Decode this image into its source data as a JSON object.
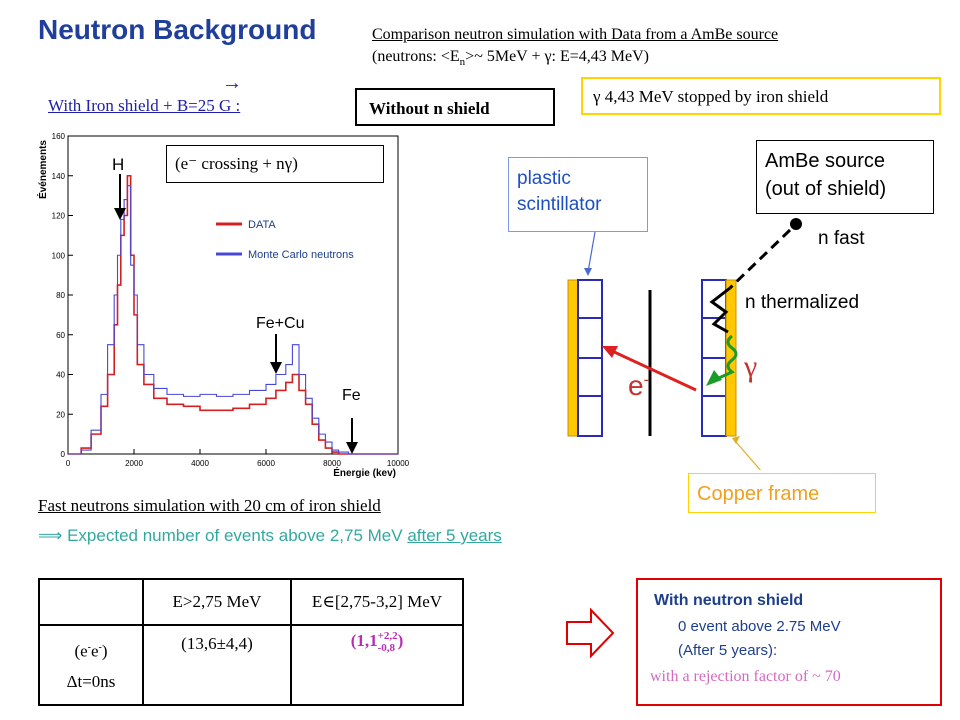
{
  "slide": {
    "title": "Neutron Background",
    "comparison_line1": "Comparison neutron simulation with Data from a AmBe source",
    "comparison_line2_a": "(neutrons: <E",
    "comparison_line2_sub": "n",
    "comparison_line2_b": ">~ 5MeV + γ: E=4,43 MeV)",
    "iron_shield_label": "With Iron shield + B=25 G :",
    "vector_arrow": "→",
    "without_n_shield": "Without n shield",
    "gamma_stopped": "γ  4,43 MeV stopped by iron shield"
  },
  "chart_data": {
    "type": "line",
    "xlabel": "Énergie (kev)",
    "ylabel": "Événements",
    "xlim": [
      0,
      10000
    ],
    "ylim": [
      0,
      160
    ],
    "xticks": [
      0,
      2000,
      4000,
      6000,
      8000,
      10000
    ],
    "yticks": [
      0,
      20,
      40,
      60,
      80,
      100,
      120,
      140,
      160
    ],
    "legend_position": "top-right",
    "series": [
      {
        "name": "DATA",
        "color": "#d42020",
        "x": [
          0,
          400,
          700,
          1000,
          1200,
          1400,
          1500,
          1600,
          1700,
          1800,
          1900,
          2000,
          2100,
          2300,
          2600,
          3000,
          3500,
          4000,
          4500,
          5000,
          5500,
          6000,
          6300,
          6600,
          6800,
          7000,
          7200,
          7400,
          7600,
          7800,
          8000,
          8200,
          8500,
          9000,
          10000
        ],
        "values": [
          0,
          3,
          10,
          24,
          40,
          65,
          85,
          110,
          120,
          140,
          100,
          70,
          45,
          35,
          28,
          25,
          24,
          22,
          22,
          23,
          25,
          28,
          32,
          36,
          40,
          32,
          25,
          15,
          7,
          3,
          1,
          0,
          0,
          0,
          0
        ]
      },
      {
        "name": "Monte Carlo neutrons",
        "color": "#4848d8",
        "x": [
          0,
          400,
          700,
          1000,
          1200,
          1400,
          1500,
          1600,
          1700,
          1800,
          1900,
          2000,
          2100,
          2300,
          2600,
          3000,
          3500,
          4000,
          4500,
          5000,
          5500,
          6000,
          6300,
          6600,
          6800,
          7000,
          7200,
          7400,
          7600,
          7800,
          8000,
          8200,
          8500,
          9000,
          10000
        ],
        "values": [
          0,
          2,
          12,
          30,
          55,
          80,
          100,
          118,
          128,
          135,
          95,
          80,
          55,
          40,
          33,
          30,
          29,
          30,
          29,
          30,
          32,
          35,
          40,
          45,
          55,
          40,
          28,
          18,
          10,
          6,
          2,
          1,
          0,
          0,
          0
        ]
      }
    ],
    "annotations": [
      "H",
      "Fe+Cu",
      "Fe"
    ],
    "crossing_label": "(e⁻ crossing +  nγ)"
  },
  "diagram": {
    "plastic_scintillator": [
      "plastic",
      "scintillator"
    ],
    "ambe_source": [
      "AmBe source",
      "(out of shield)"
    ],
    "n_fast": "n fast",
    "n_thermalized": "n thermalized",
    "gamma": "γ",
    "electron": "e",
    "electron_sup": "-",
    "copper_frame": "Copper frame"
  },
  "simulation": {
    "fast_neutrons": "Fast neutrons simulation with 20 cm of iron shield",
    "expected_prefix": "⟹ Expected number of events above 2,75 MeV ",
    "expected_underlined": "after 5 years"
  },
  "table": {
    "col1": "E>2,75 MeV",
    "col2": "E∈[2,75-3,2] MeV",
    "row_label_1a": "(e",
    "row_label_1b": "-",
    "row_label_1c": "e",
    "row_label_1d": "-",
    "row_label_1e": ")",
    "row_label_2": "Δt=0ns",
    "val1": "(13,6±4,4)",
    "val2_main": "(1,1",
    "val2_sup": "+2,2",
    "val2_sub": "-0,8",
    "val2_close": ")"
  },
  "neutron_shield": {
    "title": "With neutron shield",
    "line1": "0 event above 2.75 MeV",
    "line2": "(After 5 years):",
    "line3": "with a rejection factor of ~ 70"
  },
  "colors": {
    "title_blue": "#1f3f9a",
    "data_red": "#d42020",
    "mc_blue": "#4848d8",
    "copper_yellow": "#ffd400",
    "teal": "#33a8a0",
    "magenta": "#b52fb5"
  }
}
